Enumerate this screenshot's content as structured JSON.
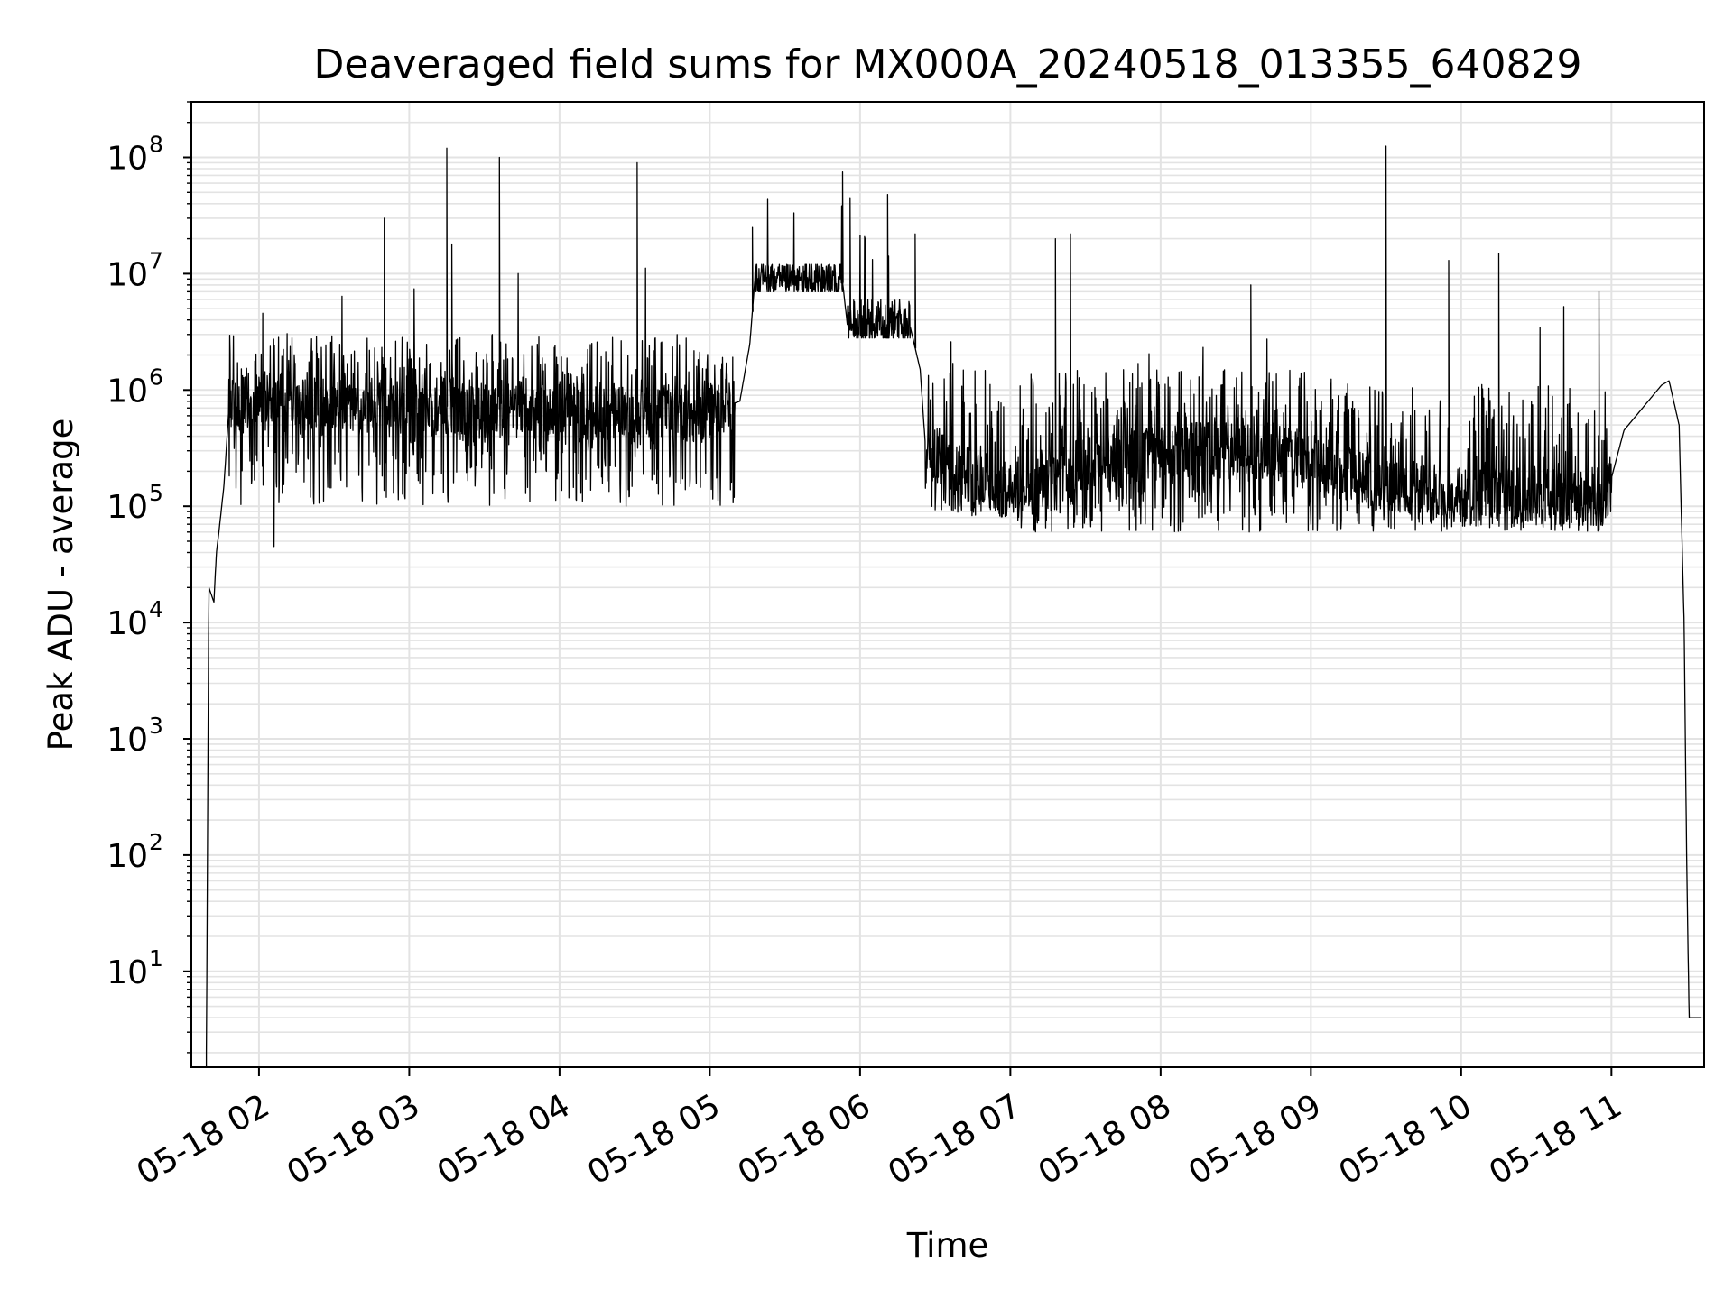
{
  "chart_data": {
    "type": "line",
    "title": "Deaveraged field sums for MX000A_20240518_013355_640829",
    "xlabel": "Time",
    "ylabel": "Peak ADU - average",
    "yscale": "log",
    "ylim": [
      1.5,
      300000000
    ],
    "xlim": [
      "2024-05-18 01:33",
      "2024-05-18 11:37"
    ],
    "grid": true,
    "line_color": "#000000",
    "grid_color": "#e3e3e3",
    "x_ticks": [
      {
        "t": "2024-05-18 02:00",
        "label": "05-18 02"
      },
      {
        "t": "2024-05-18 03:00",
        "label": "05-18 03"
      },
      {
        "t": "2024-05-18 04:00",
        "label": "05-18 04"
      },
      {
        "t": "2024-05-18 05:00",
        "label": "05-18 05"
      },
      {
        "t": "2024-05-18 06:00",
        "label": "05-18 06"
      },
      {
        "t": "2024-05-18 07:00",
        "label": "05-18 07"
      },
      {
        "t": "2024-05-18 08:00",
        "label": "05-18 08"
      },
      {
        "t": "2024-05-18 09:00",
        "label": "05-18 09"
      },
      {
        "t": "2024-05-18 10:00",
        "label": "05-18 10"
      },
      {
        "t": "2024-05-18 11:00",
        "label": "05-18 11"
      }
    ],
    "y_ticks": [
      {
        "value": 10,
        "base": "10",
        "exp": "1"
      },
      {
        "value": 100,
        "base": "10",
        "exp": "2"
      },
      {
        "value": 1000,
        "base": "10",
        "exp": "3"
      },
      {
        "value": 10000,
        "base": "10",
        "exp": "4"
      },
      {
        "value": 100000,
        "base": "10",
        "exp": "5"
      },
      {
        "value": 1000000,
        "base": "10",
        "exp": "6"
      },
      {
        "value": 10000000,
        "base": "10",
        "exp": "7"
      },
      {
        "value": 100000000,
        "base": "10",
        "exp": "8"
      }
    ],
    "series": [
      {
        "baseline": [
          {
            "t": "2024-05-18 01:39",
            "v": 2
          },
          {
            "t": "2024-05-18 01:40",
            "v": 20000
          },
          {
            "t": "2024-05-18 01:42",
            "v": 15000
          },
          {
            "t": "2024-05-18 01:43",
            "v": 40000
          },
          {
            "t": "2024-05-18 01:44",
            "v": 60000
          },
          {
            "t": "2024-05-18 01:46",
            "v": 150000
          },
          {
            "t": "2024-05-18 01:48",
            "v": 700000
          },
          {
            "t": "2024-05-18 02:00",
            "v": 900000
          },
          {
            "t": "2024-05-18 02:30",
            "v": 800000
          },
          {
            "t": "2024-05-18 03:00",
            "v": 750000
          },
          {
            "t": "2024-05-18 03:30",
            "v": 700000
          },
          {
            "t": "2024-05-18 04:00",
            "v": 650000
          },
          {
            "t": "2024-05-18 04:30",
            "v": 600000
          },
          {
            "t": "2024-05-18 05:00",
            "v": 650000
          },
          {
            "t": "2024-05-18 05:12",
            "v": 800000
          },
          {
            "t": "2024-05-18 05:16",
            "v": 2500000
          },
          {
            "t": "2024-05-18 05:18",
            "v": 9000000
          },
          {
            "t": "2024-05-18 05:53",
            "v": 8500000
          },
          {
            "t": "2024-05-18 05:55",
            "v": 3500000
          },
          {
            "t": "2024-05-18 06:20",
            "v": 3500000
          },
          {
            "t": "2024-05-18 06:24",
            "v": 1500000
          },
          {
            "t": "2024-05-18 06:26",
            "v": 350000
          },
          {
            "t": "2024-05-18 06:40",
            "v": 200000
          },
          {
            "t": "2024-05-18 06:55",
            "v": 130000
          },
          {
            "t": "2024-05-18 07:20",
            "v": 200000
          },
          {
            "t": "2024-05-18 08:00",
            "v": 300000
          },
          {
            "t": "2024-05-18 08:45",
            "v": 300000
          },
          {
            "t": "2024-05-18 09:00",
            "v": 250000
          },
          {
            "t": "2024-05-18 09:30",
            "v": 150000
          },
          {
            "t": "2024-05-18 10:00",
            "v": 120000
          },
          {
            "t": "2024-05-18 10:58",
            "v": 120000
          },
          {
            "t": "2024-05-18 11:05",
            "v": 450000
          },
          {
            "t": "2024-05-18 11:20",
            "v": 1100000
          },
          {
            "t": "2024-05-18 11:23",
            "v": 1200000
          },
          {
            "t": "2024-05-18 11:27",
            "v": 500000
          },
          {
            "t": "2024-05-18 11:29",
            "v": 10000
          },
          {
            "t": "2024-05-18 11:30",
            "v": 100
          },
          {
            "t": "2024-05-18 11:31",
            "v": 4
          },
          {
            "t": "2024-05-18 11:36",
            "v": 4
          }
        ],
        "noise_segments": [
          {
            "start": "2024-05-18 01:48",
            "end": "2024-05-18 05:10",
            "low": 100000,
            "high": 3000000
          },
          {
            "start": "2024-05-18 05:18",
            "end": "2024-05-18 05:53",
            "low": 7000000,
            "high": 12000000
          },
          {
            "start": "2024-05-18 05:55",
            "end": "2024-05-18 06:20",
            "low": 2800000,
            "high": 6000000
          },
          {
            "start": "2024-05-18 06:26",
            "end": "2024-05-18 07:00",
            "low": 80000,
            "high": 1500000
          },
          {
            "start": "2024-05-18 07:00",
            "end": "2024-05-18 09:00",
            "low": 60000,
            "high": 1500000
          },
          {
            "start": "2024-05-18 09:00",
            "end": "2024-05-18 11:00",
            "low": 60000,
            "high": 1200000
          }
        ],
        "spikes": [
          {
            "t": "2024-05-18 02:06",
            "v": 45000
          },
          {
            "t": "2024-05-18 02:50",
            "v": 30000000
          },
          {
            "t": "2024-05-18 03:15",
            "v": 120000000
          },
          {
            "t": "2024-05-18 03:17",
            "v": 18000000
          },
          {
            "t": "2024-05-18 03:36",
            "v": 100000000
          },
          {
            "t": "2024-05-18 04:31",
            "v": 90000000
          },
          {
            "t": "2024-05-18 05:17",
            "v": 25000000
          },
          {
            "t": "2024-05-18 05:53",
            "v": 75000000
          },
          {
            "t": "2024-05-18 05:56",
            "v": 45000000
          },
          {
            "t": "2024-05-18 06:11",
            "v": 48000000
          },
          {
            "t": "2024-05-18 06:22",
            "v": 22000000
          },
          {
            "t": "2024-05-18 07:18",
            "v": 20000000
          },
          {
            "t": "2024-05-18 07:24",
            "v": 22000000
          },
          {
            "t": "2024-05-18 08:36",
            "v": 8000000
          },
          {
            "t": "2024-05-18 09:30",
            "v": 125000000
          },
          {
            "t": "2024-05-18 09:55",
            "v": 13000000
          },
          {
            "t": "2024-05-18 10:15",
            "v": 15000000
          },
          {
            "t": "2024-05-18 10:55",
            "v": 7000000
          }
        ]
      }
    ]
  }
}
